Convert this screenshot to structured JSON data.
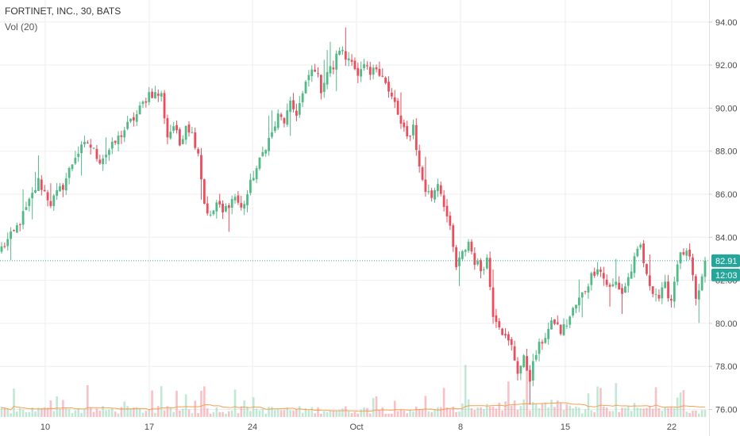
{
  "header": {
    "symbol_title": "FORTINET, INC., 30, BATS",
    "volume_label": "Vol (20)"
  },
  "colors": {
    "up": "#53b987",
    "down": "#eb4d5c",
    "last_line": "#26a69a",
    "vol_ma": "#f5a04f",
    "grid": "#eeeeee",
    "axis_text": "#4a4a4a"
  },
  "last_price_badge": {
    "value": "82.91"
  },
  "countdown_badge": {
    "value": "12:03"
  },
  "chart_data": {
    "type": "candlestick",
    "title": "FORTINET, INC., 30, BATS",
    "y_ticks": [
      "76.00",
      "78.00",
      "80.00",
      "82.00",
      "84.00",
      "86.00",
      "88.00",
      "90.00",
      "92.00",
      "94.00"
    ],
    "y_range": [
      75.9,
      95.2
    ],
    "x_ticks": [
      "10",
      "17",
      "24",
      "Oct",
      "8",
      "15",
      "22"
    ],
    "last_price": 82.91,
    "grid": true,
    "anchors": [
      [
        0,
        83.5
      ],
      [
        4,
        84.2
      ],
      [
        8,
        85.3
      ],
      [
        12,
        86.6
      ],
      [
        16,
        85.6
      ],
      [
        20,
        86.4
      ],
      [
        24,
        87.8
      ],
      [
        28,
        88.4
      ],
      [
        32,
        87.6
      ],
      [
        36,
        88.2
      ],
      [
        40,
        89.0
      ],
      [
        44,
        89.7
      ],
      [
        48,
        90.7
      ],
      [
        52,
        90.6
      ],
      [
        54,
        88.7
      ],
      [
        56,
        89.2
      ],
      [
        58,
        88.3
      ],
      [
        60,
        89.3
      ],
      [
        62,
        88.8
      ],
      [
        64,
        88.0
      ],
      [
        66,
        85.6
      ],
      [
        68,
        84.9
      ],
      [
        70,
        85.6
      ],
      [
        72,
        85.1
      ],
      [
        74,
        85.6
      ],
      [
        76,
        85.9
      ],
      [
        78,
        85.3
      ],
      [
        80,
        86.0
      ],
      [
        82,
        86.9
      ],
      [
        84,
        87.5
      ],
      [
        86,
        88.3
      ],
      [
        88,
        88.8
      ],
      [
        90,
        89.6
      ],
      [
        92,
        89.4
      ],
      [
        94,
        90.1
      ],
      [
        96,
        89.8
      ],
      [
        98,
        90.6
      ],
      [
        100,
        91.5
      ],
      [
        102,
        91.9
      ],
      [
        104,
        90.9
      ],
      [
        106,
        91.7
      ],
      [
        108,
        91.9
      ],
      [
        110,
        92.8
      ],
      [
        112,
        92.3
      ],
      [
        114,
        92.4
      ],
      [
        116,
        91.4
      ],
      [
        118,
        91.9
      ],
      [
        120,
        91.5
      ],
      [
        122,
        91.9
      ],
      [
        124,
        91.6
      ],
      [
        126,
        90.7
      ],
      [
        128,
        90.2
      ],
      [
        130,
        89.2
      ],
      [
        132,
        88.6
      ],
      [
        134,
        89.2
      ],
      [
        136,
        87.2
      ],
      [
        138,
        86.2
      ],
      [
        140,
        85.9
      ],
      [
        142,
        86.6
      ],
      [
        144,
        85.6
      ],
      [
        146,
        84.3
      ],
      [
        148,
        82.6
      ],
      [
        150,
        83.2
      ],
      [
        152,
        83.8
      ],
      [
        154,
        82.9
      ],
      [
        156,
        82.5
      ],
      [
        158,
        83.0
      ],
      [
        160,
        80.5
      ],
      [
        162,
        80.0
      ],
      [
        164,
        79.3
      ],
      [
        166,
        78.9
      ],
      [
        168,
        77.8
      ],
      [
        170,
        78.3
      ],
      [
        172,
        77.5
      ],
      [
        174,
        78.6
      ],
      [
        176,
        79.2
      ],
      [
        178,
        79.7
      ],
      [
        180,
        80.1
      ],
      [
        182,
        79.6
      ],
      [
        184,
        80.0
      ],
      [
        186,
        80.6
      ],
      [
        188,
        81.1
      ],
      [
        190,
        81.6
      ],
      [
        192,
        82.2
      ],
      [
        194,
        82.7
      ],
      [
        196,
        82.1
      ],
      [
        198,
        81.6
      ],
      [
        200,
        81.9
      ],
      [
        202,
        81.4
      ],
      [
        204,
        82.1
      ],
      [
        206,
        82.9
      ],
      [
        208,
        83.6
      ],
      [
        210,
        82.1
      ],
      [
        212,
        81.6
      ],
      [
        214,
        81.2
      ],
      [
        216,
        81.7
      ],
      [
        218,
        81.1
      ],
      [
        220,
        82.9
      ],
      [
        222,
        83.3
      ],
      [
        224,
        83.0
      ],
      [
        226,
        81.0
      ],
      [
        228,
        82.1
      ],
      [
        229,
        82.91
      ]
    ],
    "volume": {
      "label": "Vol (20)",
      "ma_period": 20
    }
  }
}
